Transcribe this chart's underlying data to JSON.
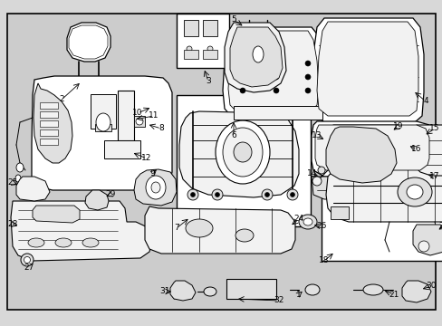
{
  "bg_color": "#d8d8d8",
  "border_color": "#000000",
  "line_color": "#000000",
  "text_color": "#000000",
  "figure_width": 4.89,
  "figure_height": 3.6,
  "dpi": 100,
  "inner_bg": "#cccccc",
  "part_fill": "#f2f2f2",
  "part_fill2": "#e0e0e0",
  "part_fill3": "#ffffff"
}
